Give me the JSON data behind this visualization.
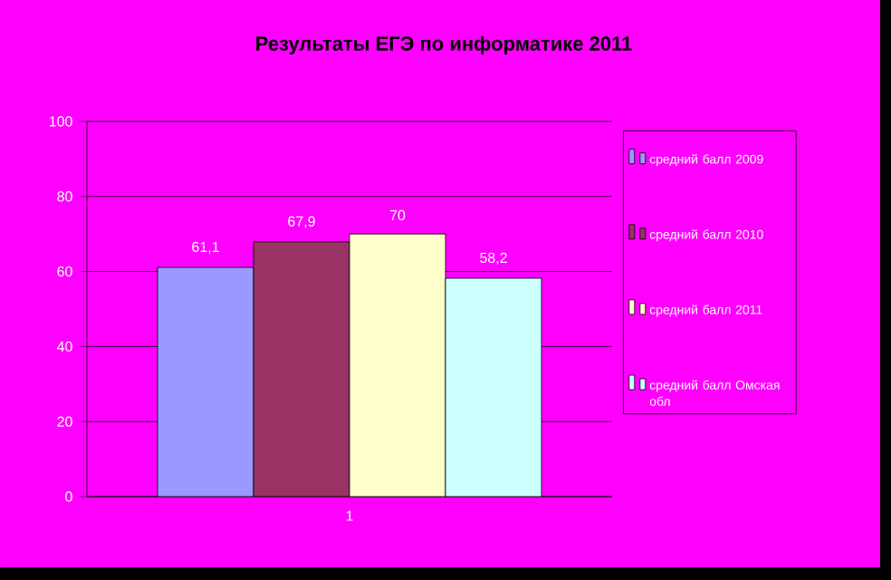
{
  "chart_data": {
    "type": "bar",
    "title": "Результаты ЕГЭ по информатике 2011",
    "categories": [
      "1"
    ],
    "series": [
      {
        "name": "средний балл 2009",
        "color": "#9999ff",
        "values": [
          61.1
        ],
        "value_labels": [
          "61,1"
        ]
      },
      {
        "name": "средний балл 2010",
        "color": "#993366",
        "values": [
          67.9
        ],
        "value_labels": [
          "67,9"
        ]
      },
      {
        "name": "средний балл 2011",
        "color": "#ffffcc",
        "values": [
          70
        ],
        "value_labels": [
          "70"
        ]
      },
      {
        "name": "средний балл Омская обл",
        "color": "#ccffff",
        "values": [
          58.2
        ],
        "value_labels": [
          "58,2"
        ]
      }
    ],
    "ylim": [
      0,
      100
    ],
    "yticks": [
      0,
      20,
      40,
      60,
      80,
      100
    ],
    "grid": "y",
    "legend": "right"
  }
}
